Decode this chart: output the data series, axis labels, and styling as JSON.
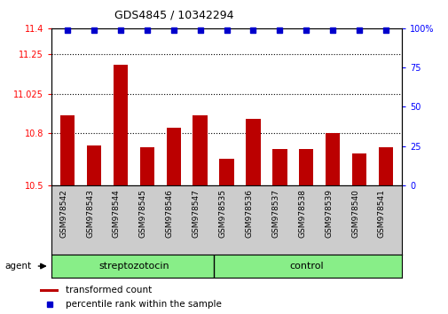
{
  "title": "GDS4845 / 10342294",
  "samples": [
    "GSM978542",
    "GSM978543",
    "GSM978544",
    "GSM978545",
    "GSM978546",
    "GSM978547",
    "GSM978535",
    "GSM978536",
    "GSM978537",
    "GSM978538",
    "GSM978539",
    "GSM978540",
    "GSM978541"
  ],
  "bar_values": [
    10.9,
    10.73,
    11.19,
    10.72,
    10.83,
    10.9,
    10.65,
    10.88,
    10.71,
    10.71,
    10.8,
    10.68,
    10.72
  ],
  "percentile_values": [
    99,
    99,
    99,
    99,
    99,
    99,
    99,
    99,
    99,
    99,
    99,
    99,
    99
  ],
  "bar_color": "#bb0000",
  "dot_color": "#0000cc",
  "ylim_left": [
    10.5,
    11.4
  ],
  "ylim_right": [
    0,
    100
  ],
  "yticks_left": [
    10.5,
    10.8,
    11.025,
    11.25,
    11.4
  ],
  "ytick_labels_left": [
    "10.5",
    "10.8",
    "11.025",
    "11.25",
    "11.4"
  ],
  "yticks_right": [
    0,
    25,
    50,
    75,
    100
  ],
  "ytick_labels_right": [
    "0",
    "25",
    "50",
    "75",
    "100%"
  ],
  "group1_label": "streptozotocin",
  "group2_label": "control",
  "group1_count": 6,
  "group2_count": 7,
  "group_color": "#88ee88",
  "agent_label": "agent",
  "legend_bar_label": "transformed count",
  "legend_dot_label": "percentile rank within the sample",
  "dotted_grid_values": [
    10.8,
    11.025,
    11.25
  ],
  "tick_area_color": "#cccccc",
  "bar_width": 0.55
}
